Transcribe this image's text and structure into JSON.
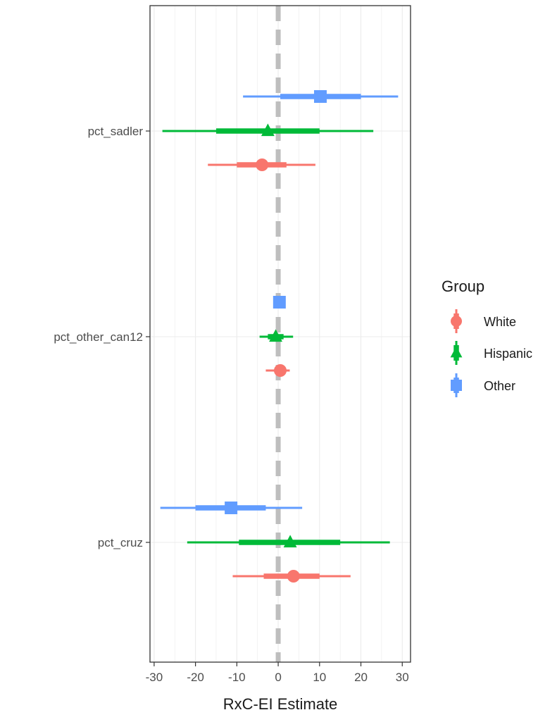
{
  "chart_data": {
    "type": "forest",
    "xlabel": "RxC-EI Estimate",
    "xlim": [
      -31,
      32
    ],
    "x_ticks": [
      -30,
      -20,
      -10,
      0,
      10,
      20,
      30
    ],
    "x_tick_labels": [
      "-30",
      "-20",
      "-10",
      "0",
      "10",
      "20",
      "30"
    ],
    "categories": [
      "pct_sadler",
      "pct_other_can12",
      "pct_cruz"
    ],
    "reference_line": {
      "x": 0,
      "style": "dashed",
      "color": "#bebebe"
    },
    "grid": true,
    "legend": {
      "title": "Group",
      "placement": "right",
      "entries": [
        {
          "name": "White",
          "color": "#F8766D",
          "shape": "circle"
        },
        {
          "name": "Hispanic",
          "color": "#00BA38",
          "shape": "triangle"
        },
        {
          "name": "Other",
          "color": "#619CFF",
          "shape": "square"
        }
      ]
    },
    "series": [
      {
        "name": "White",
        "color": "#F8766D",
        "shape": "circle",
        "points": [
          {
            "category": "pct_sadler",
            "estimate": -3.9,
            "inner": [
              -10.0,
              2.0
            ],
            "outer": [
              -17.0,
              9.0
            ]
          },
          {
            "category": "pct_other_can12",
            "estimate": 0.5,
            "inner": [
              -0.8,
              1.8
            ],
            "outer": [
              -3.0,
              2.8
            ]
          },
          {
            "category": "pct_cruz",
            "estimate": 3.7,
            "inner": [
              -3.5,
              10.0
            ],
            "outer": [
              -11.0,
              17.5
            ]
          }
        ]
      },
      {
        "name": "Hispanic",
        "color": "#00BA38",
        "shape": "triangle",
        "points": [
          {
            "category": "pct_sadler",
            "estimate": -2.5,
            "inner": [
              -15.0,
              10.0
            ],
            "outer": [
              -28.0,
              23.0
            ]
          },
          {
            "category": "pct_other_can12",
            "estimate": -0.6,
            "inner": [
              -2.5,
              1.3
            ],
            "outer": [
              -4.5,
              3.6
            ]
          },
          {
            "category": "pct_cruz",
            "estimate": 2.9,
            "inner": [
              -9.5,
              15.0
            ],
            "outer": [
              -22.0,
              27.0
            ]
          }
        ]
      },
      {
        "name": "Other",
        "color": "#619CFF",
        "shape": "square",
        "points": [
          {
            "category": "pct_sadler",
            "estimate": 10.2,
            "inner": [
              0.5,
              20.0
            ],
            "outer": [
              -8.5,
              29.0
            ]
          },
          {
            "category": "pct_other_can12",
            "estimate": 0.3,
            "inner": [
              -1.2,
              1.6
            ],
            "outer": [
              -1.2,
              1.6
            ]
          },
          {
            "category": "pct_cruz",
            "estimate": -11.4,
            "inner": [
              -20.0,
              -3.0
            ],
            "outer": [
              -28.5,
              5.8
            ]
          }
        ]
      }
    ]
  }
}
